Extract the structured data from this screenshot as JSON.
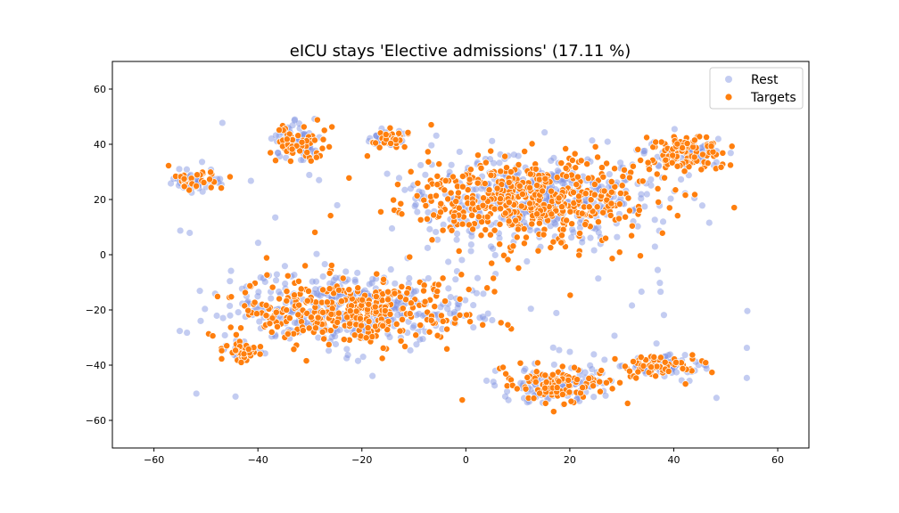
{
  "chart_data": {
    "type": "scatter",
    "title": "eICU stays 'Elective admissions' (17.11 %)",
    "xlabel": "",
    "ylabel": "",
    "xlim": [
      -68,
      66
    ],
    "ylim": [
      -70,
      70
    ],
    "xticks": [
      -60,
      -40,
      -20,
      0,
      20,
      40,
      60
    ],
    "yticks": [
      -60,
      -40,
      -20,
      0,
      20,
      40,
      60
    ],
    "tick_labels_x": [
      "−60",
      "−40",
      "−20",
      "0",
      "20",
      "40",
      "60"
    ],
    "tick_labels_y": [
      "−60",
      "−40",
      "−20",
      "0",
      "20",
      "40",
      "60"
    ],
    "grid": false,
    "legend_position": "upper right",
    "series": [
      {
        "name": "Rest",
        "color": "#7b8fe0",
        "alpha": 0.45,
        "marker": "circle"
      },
      {
        "name": "Targets",
        "color": "#ff7f0e",
        "edge": "#ffffff",
        "marker": "circle"
      }
    ],
    "clusters": [
      {
        "label": "upper-center-mass",
        "cx": 12,
        "cy": 20,
        "sx": 22,
        "sy": 14,
        "share_target": 0.5
      },
      {
        "label": "left-lower-mass",
        "cx": -22,
        "cy": -20,
        "sx": 20,
        "sy": 12,
        "share_target": 0.45
      },
      {
        "label": "bottom-center",
        "cx": 18,
        "cy": -47,
        "sx": 10,
        "sy": 6,
        "share_target": 0.45
      },
      {
        "label": "bottom-right",
        "cx": 38,
        "cy": -40,
        "sx": 7,
        "sy": 4,
        "share_target": 0.5
      },
      {
        "label": "upper-right",
        "cx": 42,
        "cy": 37,
        "sx": 7,
        "sy": 6,
        "share_target": 0.6
      },
      {
        "label": "upper-left-arc",
        "cx": -32,
        "cy": 40,
        "sx": 5,
        "sy": 6,
        "share_target": 0.55
      },
      {
        "label": "far-left-strip",
        "cx": -52,
        "cy": 27,
        "sx": 4,
        "sy": 3,
        "share_target": 0.45
      },
      {
        "label": "upper-left-small",
        "cx": -15,
        "cy": 42,
        "sx": 3,
        "sy": 3,
        "share_target": 0.55
      },
      {
        "label": "lower-left-blob",
        "cx": -43,
        "cy": -35,
        "sx": 3,
        "sy": 2.5,
        "share_target": 0.6
      }
    ]
  }
}
